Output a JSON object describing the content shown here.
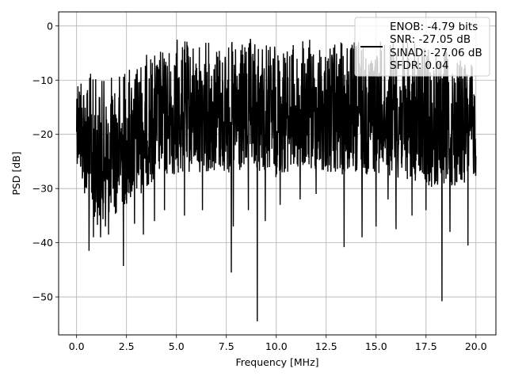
{
  "chart_data": {
    "type": "line",
    "title": "",
    "xlabel": "Frequency [MHz]",
    "ylabel": "PSD [dB]",
    "xlim": [
      -0.9,
      21.0
    ],
    "ylim": [
      -57.0,
      2.6
    ],
    "xticks": [
      0.0,
      2.5,
      5.0,
      7.5,
      10.0,
      12.5,
      15.0,
      17.5,
      20.0
    ],
    "xtick_labels": [
      "0.0",
      "2.5",
      "5.0",
      "7.5",
      "10.0",
      "12.5",
      "15.0",
      "17.5",
      "20.0"
    ],
    "yticks": [
      0,
      -10,
      -20,
      -30,
      -40,
      -50
    ],
    "ytick_labels": [
      "0",
      "−10",
      "−20",
      "−30",
      "−40",
      "−50"
    ],
    "grid": true,
    "legend_position": "top-right",
    "legend_lines": [
      "ENOB: -4.79 bits",
      "SNR: -27.05 dB",
      "SINAD: -27.06 dB",
      "SFDR: 0.04"
    ],
    "series_color": "#000000",
    "series": [
      {
        "x_start": 0.0,
        "x_end": 20.0,
        "envelope_upper": [
          [
            0.0,
            -6
          ],
          [
            0.5,
            -8
          ],
          [
            1.0,
            -9
          ],
          [
            1.5,
            -10
          ],
          [
            2.0,
            -8
          ],
          [
            2.5,
            -7
          ],
          [
            3.0,
            -6
          ],
          [
            3.5,
            -5
          ],
          [
            4.0,
            -4
          ],
          [
            4.5,
            -4
          ],
          [
            5.0,
            -2
          ],
          [
            6.0,
            -3
          ],
          [
            7.0,
            -2
          ],
          [
            8.0,
            -3
          ],
          [
            9.0,
            -2
          ],
          [
            10.0,
            -3
          ],
          [
            11.0,
            -3
          ],
          [
            12.0,
            -2
          ],
          [
            13.0,
            -3
          ],
          [
            14.0,
            -2
          ],
          [
            15.0,
            -3
          ],
          [
            16.0,
            -2
          ],
          [
            17.0,
            -3
          ],
          [
            18.0,
            -4
          ],
          [
            19.0,
            -5
          ],
          [
            20.0,
            -7
          ]
        ],
        "envelope_lower": [
          [
            0.0,
            -25
          ],
          [
            0.5,
            -33
          ],
          [
            1.0,
            -37
          ],
          [
            1.5,
            -35
          ],
          [
            2.0,
            -35
          ],
          [
            2.5,
            -33
          ],
          [
            3.0,
            -32
          ],
          [
            3.5,
            -30
          ],
          [
            4.0,
            -28
          ],
          [
            5.0,
            -28
          ],
          [
            6.0,
            -27
          ],
          [
            7.0,
            -27
          ],
          [
            8.0,
            -28
          ],
          [
            9.0,
            -27
          ],
          [
            10.0,
            -28
          ],
          [
            11.0,
            -27
          ],
          [
            12.0,
            -27
          ],
          [
            13.0,
            -28
          ],
          [
            14.0,
            -28
          ],
          [
            15.0,
            -27
          ],
          [
            16.0,
            -28
          ],
          [
            17.0,
            -29
          ],
          [
            18.0,
            -30
          ],
          [
            19.0,
            -30
          ],
          [
            20.0,
            -28
          ]
        ],
        "dips": [
          [
            0.62,
            -41.5
          ],
          [
            0.85,
            -39
          ],
          [
            1.2,
            -39
          ],
          [
            1.45,
            -37
          ],
          [
            1.6,
            -38.5
          ],
          [
            2.35,
            -44.3
          ],
          [
            2.9,
            -36.5
          ],
          [
            3.35,
            -38.5
          ],
          [
            3.9,
            -36
          ],
          [
            4.4,
            -34
          ],
          [
            5.4,
            -35
          ],
          [
            6.3,
            -34
          ],
          [
            7.75,
            -45.5
          ],
          [
            7.85,
            -37
          ],
          [
            8.6,
            -34
          ],
          [
            9.05,
            -54.5
          ],
          [
            9.45,
            -36
          ],
          [
            10.2,
            -33
          ],
          [
            11.2,
            -32
          ],
          [
            12.0,
            -31
          ],
          [
            13.4,
            -40.8
          ],
          [
            14.3,
            -39
          ],
          [
            15.0,
            -37
          ],
          [
            15.6,
            -32
          ],
          [
            16.0,
            -37.5
          ],
          [
            16.8,
            -35
          ],
          [
            17.5,
            -34
          ],
          [
            18.3,
            -50.8
          ],
          [
            18.7,
            -38
          ],
          [
            19.6,
            -40.5
          ]
        ]
      }
    ]
  }
}
